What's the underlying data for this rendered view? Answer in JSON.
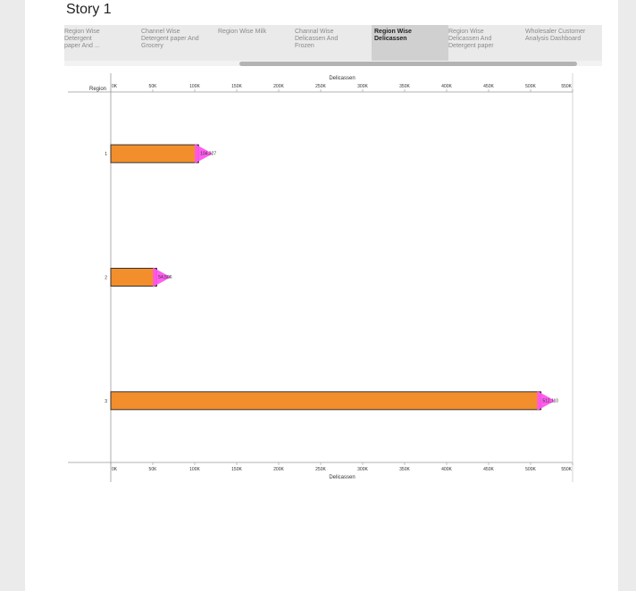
{
  "story": {
    "title": "Story 1"
  },
  "tabs": [
    {
      "lines": [
        "Region Wise",
        "Detergent",
        "paper And ..."
      ],
      "active": false
    },
    {
      "lines": [
        "Channel Wise",
        "Detergent paper And",
        "Grocery"
      ],
      "active": false
    },
    {
      "lines": [
        "Region Wise Milk"
      ],
      "active": false
    },
    {
      "lines": [
        "Channal Wise",
        "Delicassen And",
        "Frozen"
      ],
      "active": false
    },
    {
      "lines": [
        "Region Wise",
        "Delicassen"
      ],
      "active": true
    },
    {
      "lines": [
        "Region Wise",
        "Delicassen And",
        "Detergent paper"
      ],
      "active": false
    },
    {
      "lines": [
        "Wholesaler Customer",
        "Analysis Dashboard"
      ],
      "active": false
    }
  ],
  "chart_data": {
    "type": "bar",
    "orientation": "horizontal",
    "categories": [
      "1",
      "2",
      "3"
    ],
    "values": [
      104327,
      54506,
      512110
    ],
    "data_labels": [
      "104,327",
      "54,506",
      "512,110"
    ],
    "xlabel": "Delicassen",
    "ylabel": "Region",
    "xlim": [
      0,
      550000
    ],
    "xticks": [
      0,
      50000,
      100000,
      150000,
      200000,
      250000,
      300000,
      350000,
      400000,
      450000,
      500000,
      550000
    ],
    "xtick_labels": [
      "0K",
      "50K",
      "100K",
      "150K",
      "200K",
      "250K",
      "300K",
      "350K",
      "400K",
      "450K",
      "500K",
      "550K"
    ],
    "bar_color": "#f28e2b",
    "marker_color": "#ff55ee",
    "grid": false
  }
}
